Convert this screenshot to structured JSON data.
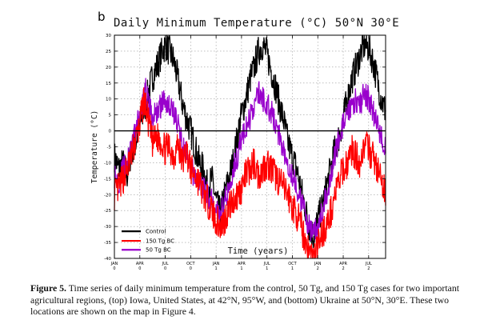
{
  "panel_label": "b",
  "caption": {
    "label": "Figure 5.",
    "text": "Time series of daily minimum temperature from the control, 50 Tg, and 150 Tg cases for two important agricultural regions, (top) Iowa, United States, at 42°N, 95°W, and (bottom) Ukraine at 50°N, 30°E. These two locations are shown on the map in Figure 4."
  },
  "chart_data": {
    "type": "line",
    "title": "Daily Minimum Temperature (°C) 50°N 30°E",
    "xlabel": "Time (years)",
    "ylabel": "Temperature (°C)",
    "ylim": [
      -40,
      30
    ],
    "yticks": [
      -40,
      -35,
      -30,
      -25,
      -20,
      -15,
      -10,
      -5,
      0,
      5,
      10,
      15,
      20,
      25,
      30
    ],
    "xlim": [
      0,
      32
    ],
    "xticks": [
      {
        "x": 0,
        "month": "JAN",
        "year": "0"
      },
      {
        "x": 3,
        "month": "APR",
        "year": "0"
      },
      {
        "x": 6,
        "month": "JUL",
        "year": "0"
      },
      {
        "x": 9,
        "month": "OCT",
        "year": "0"
      },
      {
        "x": 12,
        "month": "JAN",
        "year": "1"
      },
      {
        "x": 15,
        "month": "APR",
        "year": "1"
      },
      {
        "x": 18,
        "month": "JUL",
        "year": "1"
      },
      {
        "x": 21,
        "month": "OCT",
        "year": "1"
      },
      {
        "x": 24,
        "month": "JAN",
        "year": "2"
      },
      {
        "x": 27,
        "month": "APR",
        "year": "2"
      },
      {
        "x": 30,
        "month": "JUL",
        "year": "2"
      }
    ],
    "zero_line": 0,
    "grid": true,
    "legend_position": "bottom-left",
    "series": [
      {
        "name": "Control",
        "color": "#000000",
        "x": [
          0,
          0.5,
          1,
          1.5,
          2,
          2.5,
          3,
          3.5,
          4,
          4.5,
          5,
          5.5,
          6,
          6.5,
          7,
          7.5,
          8,
          8.5,
          9,
          9.5,
          10,
          10.5,
          11,
          11.5,
          12,
          12.5,
          13,
          13.5,
          14,
          14.5,
          15,
          15.5,
          16,
          16.5,
          17,
          17.5,
          18,
          18.5,
          19,
          19.5,
          20,
          20.5,
          21,
          21.5,
          22,
          22.5,
          23,
          23.5,
          24,
          24.5,
          25,
          25.5,
          26,
          26.5,
          27,
          27.5,
          28,
          28.5,
          29,
          29.5,
          30,
          30.5,
          31,
          31.5,
          32
        ],
        "values": [
          -8,
          -12,
          -10,
          -14,
          -6,
          -4,
          2,
          6,
          12,
          17,
          20,
          24,
          27,
          25,
          22,
          16,
          9,
          4,
          0,
          -5,
          -10,
          -12,
          -18,
          -15,
          -22,
          -26,
          -20,
          -15,
          -10,
          -2,
          5,
          10,
          16,
          20,
          25,
          27,
          24,
          19,
          14,
          8,
          3,
          -4,
          -8,
          -12,
          -18,
          -24,
          -30,
          -33,
          -28,
          -24,
          -18,
          -12,
          -6,
          -2,
          4,
          10,
          16,
          20,
          24,
          27,
          26,
          22,
          16,
          10,
          6
        ]
      },
      {
        "name": "150 Tg BC",
        "color": "#ff0000",
        "x": [
          0,
          0.5,
          1,
          1.5,
          2,
          2.5,
          3,
          3.5,
          4,
          4.5,
          5,
          5.5,
          6,
          6.5,
          7,
          7.5,
          8,
          8.5,
          9,
          9.5,
          10,
          10.5,
          11,
          11.5,
          12,
          12.5,
          13,
          13.5,
          14,
          14.5,
          15,
          15.5,
          16,
          16.5,
          17,
          17.5,
          18,
          18.5,
          19,
          19.5,
          20,
          20.5,
          21,
          21.5,
          22,
          22.5,
          23,
          23.5,
          24,
          24.5,
          25,
          25.5,
          26,
          26.5,
          27,
          27.5,
          28,
          28.5,
          29,
          29.5,
          30,
          30.5,
          31,
          31.5,
          32
        ],
        "values": [
          -20,
          -18,
          -15,
          -12,
          -8,
          -3,
          2,
          10,
          3,
          -4,
          -2,
          -3,
          -6,
          -5,
          -8,
          -4,
          -10,
          -6,
          -12,
          -14,
          -16,
          -20,
          -22,
          -25,
          -28,
          -30,
          -28,
          -24,
          -22,
          -20,
          -18,
          -14,
          -12,
          -10,
          -14,
          -12,
          -10,
          -12,
          -14,
          -16,
          -18,
          -20,
          -24,
          -26,
          -30,
          -34,
          -38,
          -40,
          -36,
          -32,
          -30,
          -26,
          -20,
          -16,
          -12,
          -10,
          -6,
          -8,
          -10,
          -4,
          -6,
          -8,
          -12,
          -16,
          -20
        ]
      },
      {
        "name": "50 Tg BC",
        "color": "#9900cc",
        "x": [
          0,
          0.5,
          1,
          1.5,
          2,
          2.5,
          3,
          3.5,
          4,
          4.5,
          5,
          5.5,
          6,
          6.5,
          7,
          7.5,
          8,
          8.5,
          9,
          9.5,
          10,
          10.5,
          11,
          11.5,
          12,
          12.5,
          13,
          13.5,
          14,
          14.5,
          15,
          15.5,
          16,
          16.5,
          17,
          17.5,
          18,
          18.5,
          19,
          19.5,
          20,
          20.5,
          21,
          21.5,
          22,
          22.5,
          23,
          23.5,
          24,
          24.5,
          25,
          25.5,
          26,
          26.5,
          27,
          27.5,
          28,
          28.5,
          29,
          29.5,
          30,
          30.5,
          31,
          31.5,
          32
        ],
        "values": [
          -14,
          -16,
          -12,
          -10,
          -6,
          0,
          5,
          15,
          9,
          4,
          6,
          8,
          10,
          8,
          6,
          2,
          -4,
          -8,
          -12,
          -14,
          -16,
          -18,
          -20,
          -22,
          -24,
          -26,
          -22,
          -18,
          -12,
          -8,
          -2,
          0,
          4,
          8,
          12,
          10,
          8,
          6,
          2,
          -2,
          -6,
          -10,
          -14,
          -18,
          -22,
          -26,
          -30,
          -33,
          -30,
          -26,
          -20,
          -14,
          -8,
          -2,
          2,
          4,
          8,
          10,
          8,
          12,
          10,
          6,
          2,
          -2,
          -4
        ]
      }
    ]
  }
}
